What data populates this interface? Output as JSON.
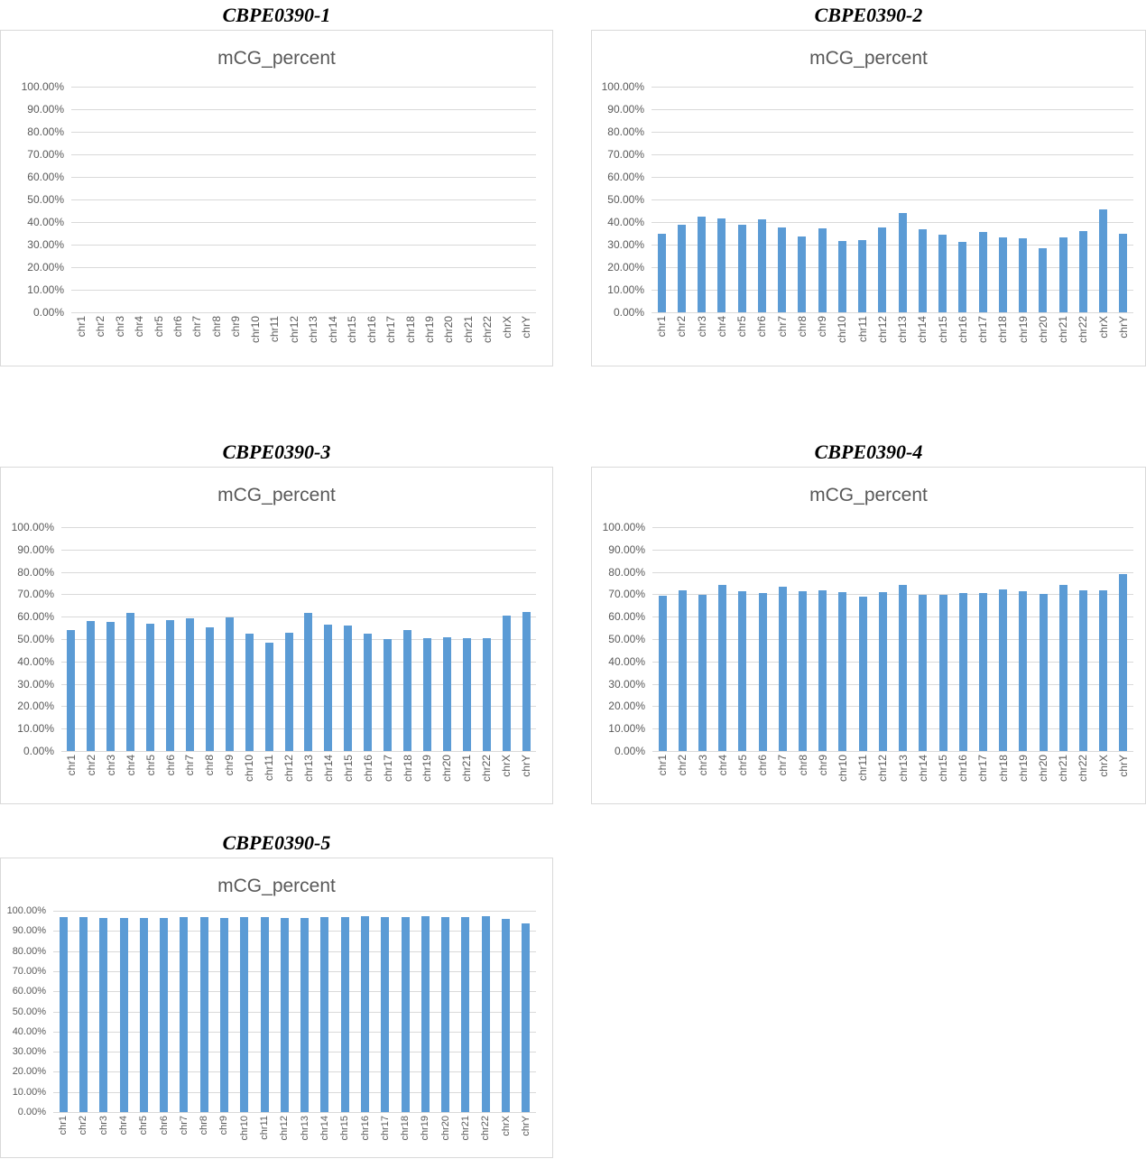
{
  "colors": {
    "bar": "#5B9BD5",
    "gridline": "#D9D9D9",
    "panel_border": "#D9D9D9",
    "axis_text": "#595959",
    "inner_title_text": "#595959",
    "outer_title_text": "#000000"
  },
  "chart_data": [
    {
      "type": "bar",
      "title": "CBPE0390-1",
      "axis_title": "mCG_percent",
      "categories": [
        "chr1",
        "chr2",
        "chr3",
        "chr4",
        "chr5",
        "chr6",
        "chr7",
        "chr8",
        "chr9",
        "chr10",
        "chr11",
        "chr12",
        "chr13",
        "chr14",
        "chr15",
        "chr16",
        "chr17",
        "chr18",
        "chr19",
        "chr20",
        "chr21",
        "chr22",
        "chrX",
        "chrY"
      ],
      "values": [],
      "ylim": [
        0,
        100
      ],
      "grid": true,
      "legend": "none",
      "y_tick_labels": [
        "0.00%",
        "10.00%",
        "20.00%",
        "30.00%",
        "40.00%",
        "50.00%",
        "60.00%",
        "70.00%",
        "80.00%",
        "90.00%",
        "100.00%"
      ]
    },
    {
      "type": "bar",
      "title": "CBPE0390-2",
      "axis_title": "mCG_percent",
      "categories": [
        "chr1",
        "chr2",
        "chr3",
        "chr4",
        "chr5",
        "chr6",
        "chr7",
        "chr8",
        "chr9",
        "chr10",
        "chr11",
        "chr12",
        "chr13",
        "chr14",
        "chr15",
        "chr16",
        "chr17",
        "chr18",
        "chr19",
        "chr20",
        "chr21",
        "chr22",
        "chrX",
        "chrY"
      ],
      "values": [
        34.9,
        38.8,
        42.6,
        41.8,
        38.9,
        41.4,
        37.7,
        33.7,
        37.3,
        31.7,
        32.2,
        37.6,
        44.1,
        37.0,
        34.5,
        31.4,
        35.7,
        33.4,
        32.8,
        28.6,
        33.3,
        36.1,
        45.5,
        34.8
      ],
      "ylim": [
        0,
        100
      ],
      "grid": true,
      "legend": "none",
      "y_tick_labels": [
        "0.00%",
        "10.00%",
        "20.00%",
        "30.00%",
        "40.00%",
        "50.00%",
        "60.00%",
        "70.00%",
        "80.00%",
        "90.00%",
        "100.00%"
      ]
    },
    {
      "type": "bar",
      "title": "CBPE0390-3",
      "axis_title": "mCG_percent",
      "categories": [
        "chr1",
        "chr2",
        "chr3",
        "chr4",
        "chr5",
        "chr6",
        "chr7",
        "chr8",
        "chr9",
        "chr10",
        "chr11",
        "chr12",
        "chr13",
        "chr14",
        "chr15",
        "chr16",
        "chr17",
        "chr18",
        "chr19",
        "chr20",
        "chr21",
        "chr22",
        "chrX",
        "chrY"
      ],
      "values": [
        54.1,
        58.0,
        57.6,
        61.8,
        56.8,
        58.4,
        59.2,
        55.4,
        59.6,
        52.3,
        48.2,
        52.7,
        61.7,
        56.5,
        56.0,
        52.3,
        50.0,
        54.1,
        50.5,
        50.9,
        50.5,
        50.3,
        60.3,
        62.0
      ],
      "ylim": [
        0,
        100
      ],
      "grid": true,
      "legend": "none",
      "y_tick_labels": [
        "0.00%",
        "10.00%",
        "20.00%",
        "30.00%",
        "40.00%",
        "50.00%",
        "60.00%",
        "70.00%",
        "80.00%",
        "90.00%",
        "100.00%"
      ]
    },
    {
      "type": "bar",
      "title": "CBPE0390-4",
      "axis_title": "mCG_percent",
      "categories": [
        "chr1",
        "chr2",
        "chr3",
        "chr4",
        "chr5",
        "chr6",
        "chr7",
        "chr8",
        "chr9",
        "chr10",
        "chr11",
        "chr12",
        "chr13",
        "chr14",
        "chr15",
        "chr16",
        "chr17",
        "chr18",
        "chr19",
        "chr20",
        "chr21",
        "chr22",
        "chrX",
        "chrY"
      ],
      "values": [
        69.5,
        71.6,
        69.7,
        74.3,
        71.2,
        70.4,
        73.2,
        71.2,
        71.8,
        71.1,
        69.0,
        70.8,
        74.1,
        69.7,
        69.9,
        70.5,
        70.5,
        72.0,
        71.4,
        70.1,
        74.3,
        71.8,
        71.6,
        79.0
      ],
      "ylim": [
        0,
        100
      ],
      "grid": true,
      "legend": "none",
      "y_tick_labels": [
        "0.00%",
        "10.00%",
        "20.00%",
        "30.00%",
        "40.00%",
        "50.00%",
        "60.00%",
        "70.00%",
        "80.00%",
        "90.00%",
        "100.00%"
      ]
    },
    {
      "type": "bar",
      "title": "CBPE0390-5",
      "axis_title": "mCG_percent",
      "categories": [
        "chr1",
        "chr2",
        "chr3",
        "chr4",
        "chr5",
        "chr6",
        "chr7",
        "chr8",
        "chr9",
        "chr10",
        "chr11",
        "chr12",
        "chr13",
        "chr14",
        "chr15",
        "chr16",
        "chr17",
        "chr18",
        "chr19",
        "chr20",
        "chr21",
        "chr22",
        "chrX",
        "chrY"
      ],
      "values": [
        96.7,
        96.7,
        96.4,
        96.4,
        96.6,
        96.6,
        96.9,
        97.0,
        96.6,
        96.9,
        96.9,
        96.6,
        96.6,
        97.0,
        97.0,
        97.3,
        97.0,
        96.7,
        97.3,
        96.9,
        96.9,
        97.2,
        96.0,
        93.7
      ],
      "ylim": [
        0,
        100
      ],
      "grid": true,
      "legend": "none",
      "y_tick_labels": [
        "0.00%",
        "10.00%",
        "20.00%",
        "30.00%",
        "40.00%",
        "50.00%",
        "60.00%",
        "70.00%",
        "80.00%",
        "90.00%",
        "100.00%"
      ]
    }
  ]
}
